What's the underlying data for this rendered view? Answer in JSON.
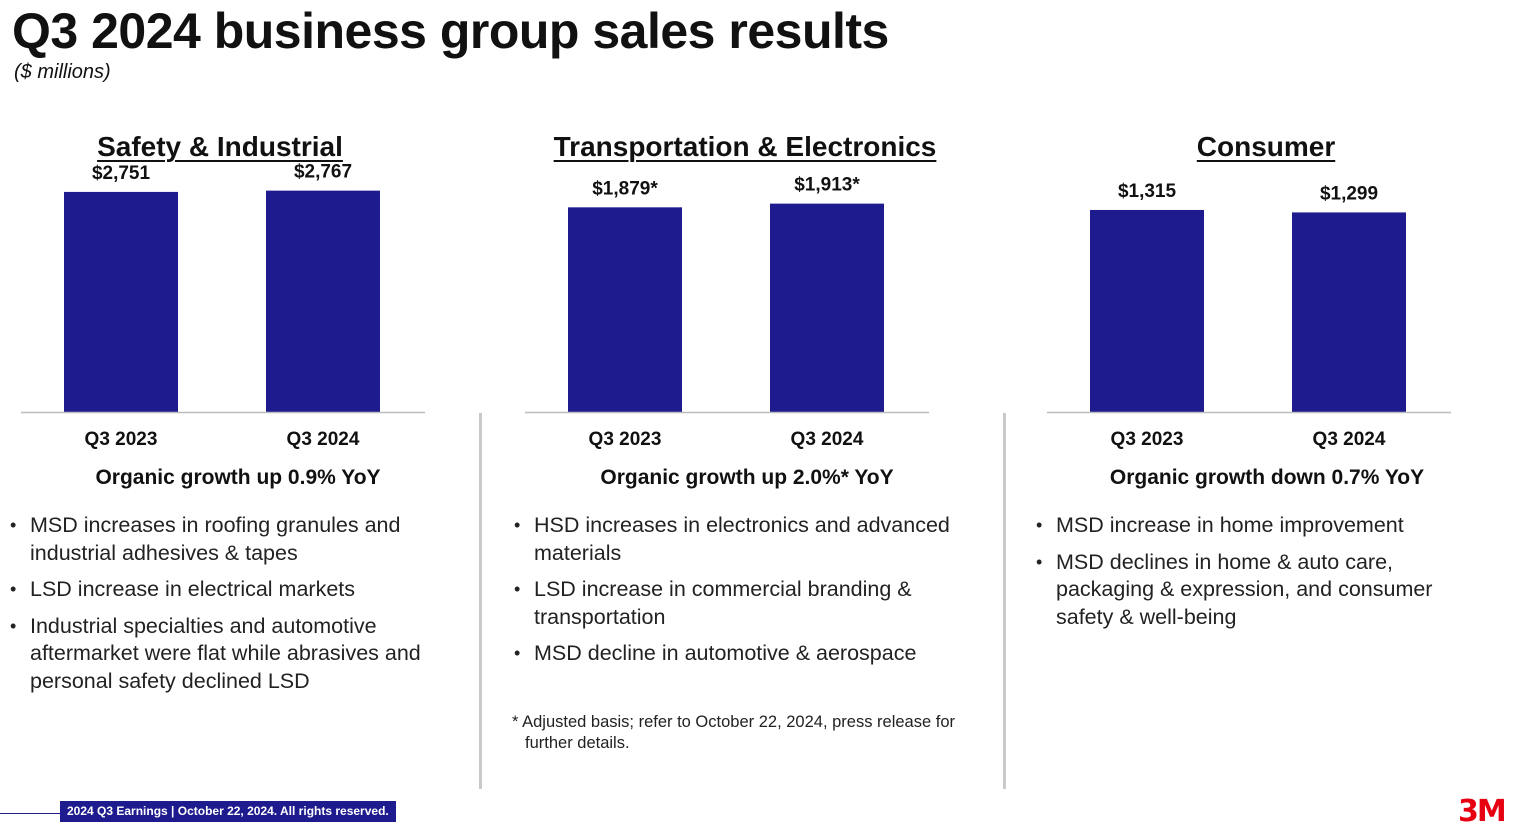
{
  "title": "Q3 2024 business group sales results",
  "subtitle": "($ millions)",
  "bar_color": "#1e1b8e",
  "chart_data": [
    {
      "type": "bar",
      "title": "Safety & Industrial",
      "categories": [
        "Q3 2023",
        "Q3 2024"
      ],
      "values": [
        2751,
        2767
      ],
      "labels": [
        "$2,751",
        "$2,767"
      ],
      "ylim": [
        0,
        2900
      ]
    },
    {
      "type": "bar",
      "title": "Transportation & Electronics",
      "categories": [
        "Q3 2023",
        "Q3 2024"
      ],
      "values": [
        1879,
        1913
      ],
      "labels": [
        "$1,879*",
        "$1,913*"
      ],
      "ylim": [
        0,
        2130
      ]
    },
    {
      "type": "bar",
      "title": "Consumer",
      "categories": [
        "Q3 2023",
        "Q3 2024"
      ],
      "values": [
        1315,
        1299
      ],
      "labels": [
        "$1,315",
        "$1,299"
      ],
      "ylim": [
        0,
        1510
      ]
    }
  ],
  "segments": [
    {
      "growth": "Organic growth up 0.9% YoY",
      "bullets": [
        "MSD increases in roofing granules and industrial adhesives & tapes",
        "LSD increase in electrical markets",
        "Industrial specialties and automotive aftermarket were flat while abrasives and personal safety declined LSD"
      ]
    },
    {
      "growth": "Organic growth up 2.0%* YoY",
      "bullets": [
        "HSD increases in electronics and advanced materials",
        "LSD increase in commercial branding & transportation",
        "MSD decline in automotive & aerospace"
      ]
    },
    {
      "growth": "Organic growth down 0.7% YoY",
      "bullets": [
        "MSD increase in home improvement",
        "MSD declines in home & auto care, packaging & expression, and consumer safety & well-being"
      ]
    }
  ],
  "footnote": "* Adjusted basis; refer to October 22, 2024, press release for further details.",
  "footer": "2024 Q3 Earnings | October 22, 2024. All rights reserved.",
  "logo": "3M"
}
